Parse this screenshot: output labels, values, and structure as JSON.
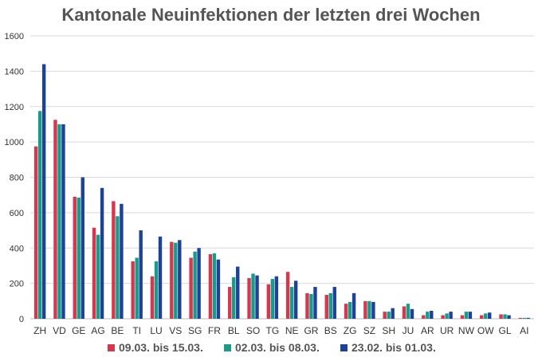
{
  "chart_data": {
    "type": "bar",
    "title": "Kantonale Neuinfektionen der letzten drei Wochen",
    "categories": [
      "ZH",
      "VD",
      "GE",
      "AG",
      "BE",
      "TI",
      "LU",
      "VS",
      "SG",
      "FR",
      "BL",
      "SO",
      "TG",
      "NE",
      "GR",
      "BS",
      "ZG",
      "SZ",
      "SH",
      "JU",
      "AR",
      "UR",
      "NW",
      "OW",
      "GL",
      "AI"
    ],
    "series": [
      {
        "name": "09.03. bis 15.03.",
        "color": "#d6374e",
        "values": [
          975,
          1125,
          690,
          515,
          665,
          325,
          240,
          435,
          345,
          365,
          180,
          230,
          195,
          265,
          145,
          135,
          85,
          100,
          40,
          70,
          20,
          20,
          20,
          20,
          25,
          5
        ]
      },
      {
        "name": "02.03. bis 08.03.",
        "color": "#1a9b88",
        "values": [
          1175,
          1100,
          685,
          475,
          580,
          345,
          325,
          430,
          380,
          370,
          235,
          255,
          225,
          180,
          140,
          145,
          95,
          100,
          40,
          85,
          40,
          30,
          40,
          30,
          25,
          5
        ]
      },
      {
        "name": "23.02. bis 01.03.",
        "color": "#1c4397",
        "values": [
          1440,
          1100,
          800,
          740,
          650,
          500,
          465,
          445,
          400,
          335,
          295,
          245,
          240,
          215,
          180,
          180,
          145,
          95,
          60,
          55,
          45,
          40,
          40,
          35,
          20,
          5
        ]
      }
    ],
    "ylim": [
      0,
      1600
    ],
    "yticks": [
      0,
      200,
      400,
      600,
      800,
      1000,
      1200,
      1400,
      1600
    ],
    "grid": true,
    "legend": "bottom"
  }
}
